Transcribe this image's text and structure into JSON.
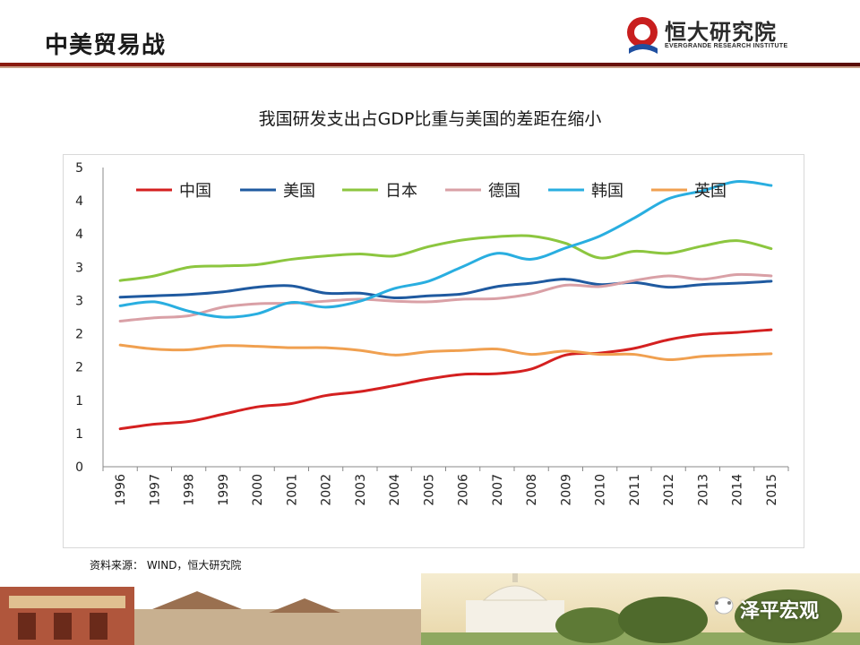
{
  "header": {
    "slide_title": "中美贸易战",
    "logo_text": "恒大研究院",
    "logo_sub": "EVERGRANDE RESEARCH INSTITUTE"
  },
  "source_note": "资料来源： WIND，恒大研究院",
  "footer_brand": "泽平宏观",
  "colors": {
    "header_rule": "#8a1a10",
    "china": "#d42020",
    "usa": "#1f5aa0",
    "japan": "#8cc63f",
    "germany": "#d9a0a6",
    "korea": "#29aee0",
    "uk": "#f0a050"
  },
  "chart_data": {
    "type": "line",
    "title": "我国研发支出占GDP比重与美国的差距在缩小",
    "xlabel": "",
    "ylabel": "",
    "ytick_labels": [
      "0",
      "1",
      "1",
      "2",
      "2",
      "3",
      "3",
      "4",
      "4",
      "5"
    ],
    "ylim": [
      0,
      4.5
    ],
    "legend_position": "top",
    "grid": false,
    "x": [
      "1996",
      "1997",
      "1998",
      "1999",
      "2000",
      "2001",
      "2002",
      "2003",
      "2004",
      "2005",
      "2006",
      "2007",
      "2008",
      "2009",
      "2010",
      "2011",
      "2012",
      "2013",
      "2014",
      "2015"
    ],
    "series": [
      {
        "name": "中国",
        "color": "#d42020",
        "values": [
          0.57,
          0.64,
          0.68,
          0.79,
          0.9,
          0.95,
          1.07,
          1.13,
          1.22,
          1.32,
          1.39,
          1.4,
          1.47,
          1.68,
          1.71,
          1.78,
          1.91,
          1.99,
          2.02,
          2.06
        ]
      },
      {
        "name": "美国",
        "color": "#1f5aa0",
        "values": [
          2.55,
          2.57,
          2.59,
          2.63,
          2.7,
          2.72,
          2.61,
          2.61,
          2.54,
          2.57,
          2.6,
          2.71,
          2.76,
          2.82,
          2.74,
          2.77,
          2.7,
          2.74,
          2.76,
          2.79
        ]
      },
      {
        "name": "日本",
        "color": "#8cc63f",
        "values": [
          2.8,
          2.87,
          3.0,
          3.02,
          3.04,
          3.12,
          3.17,
          3.2,
          3.17,
          3.31,
          3.41,
          3.46,
          3.47,
          3.36,
          3.14,
          3.24,
          3.21,
          3.32,
          3.4,
          3.28
        ]
      },
      {
        "name": "德国",
        "color": "#d9a0a6",
        "values": [
          2.19,
          2.24,
          2.27,
          2.4,
          2.45,
          2.46,
          2.49,
          2.52,
          2.49,
          2.48,
          2.52,
          2.53,
          2.6,
          2.73,
          2.71,
          2.8,
          2.87,
          2.82,
          2.89,
          2.87
        ]
      },
      {
        "name": "韩国",
        "color": "#29aee0",
        "values": [
          2.42,
          2.48,
          2.34,
          2.25,
          2.3,
          2.47,
          2.4,
          2.49,
          2.68,
          2.79,
          3.01,
          3.21,
          3.12,
          3.29,
          3.47,
          3.74,
          4.03,
          4.15,
          4.29,
          4.23
        ]
      },
      {
        "name": "英国",
        "color": "#f0a050",
        "values": [
          1.83,
          1.77,
          1.76,
          1.82,
          1.81,
          1.79,
          1.79,
          1.75,
          1.68,
          1.73,
          1.75,
          1.77,
          1.69,
          1.74,
          1.69,
          1.69,
          1.61,
          1.66,
          1.68,
          1.7
        ]
      }
    ]
  }
}
